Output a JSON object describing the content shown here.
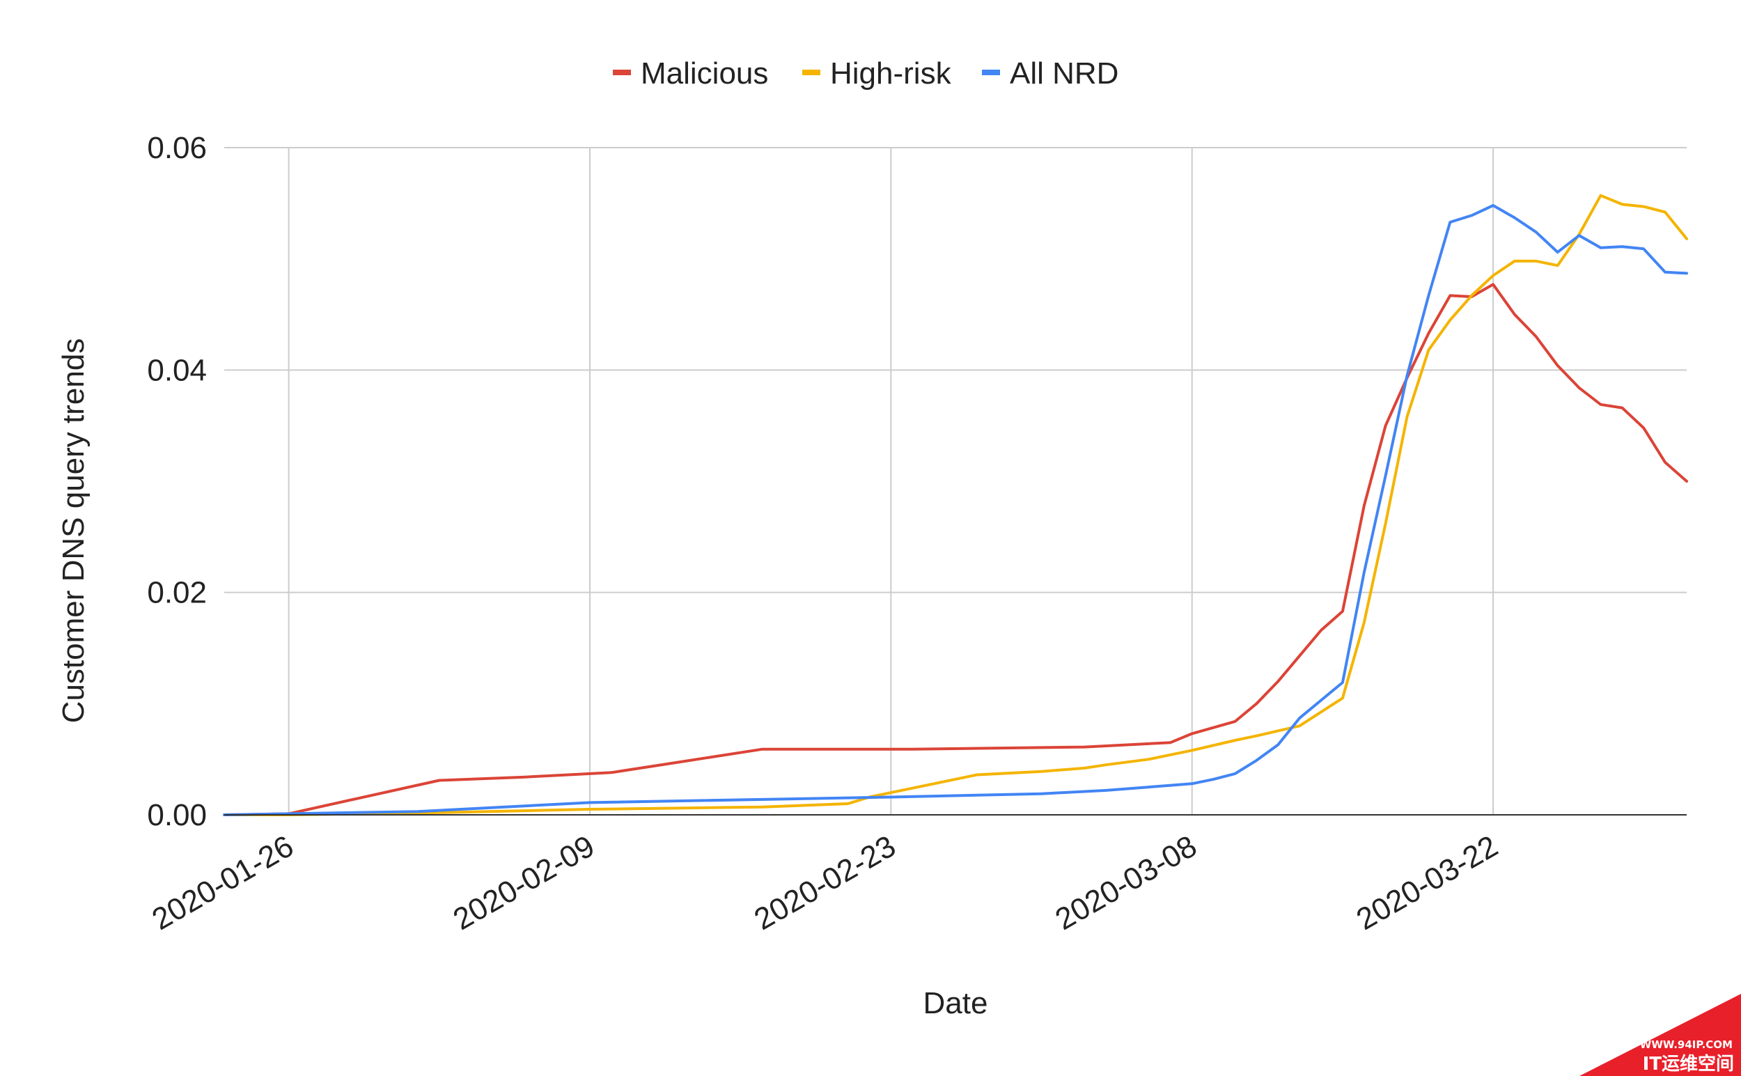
{
  "chart_data": {
    "type": "line",
    "title": "",
    "xlabel": "Date",
    "ylabel": "Customer DNS query trends",
    "ylim": [
      0,
      0.06
    ],
    "y_ticks": [
      "0.00",
      "0.02",
      "0.04",
      "0.06"
    ],
    "x_ticks": [
      "2020-01-26",
      "2020-02-09",
      "2020-02-23",
      "2020-03-08",
      "2020-03-22"
    ],
    "x_range": [
      "2020-01-23",
      "2020-03-31"
    ],
    "grid": true,
    "legend_position": "top-center",
    "series": [
      {
        "name": "Malicious",
        "color": "#db4437",
        "points": [
          [
            "2020-01-23",
            0.0
          ],
          [
            "2020-01-26",
            0.0001
          ],
          [
            "2020-02-02",
            0.0031
          ],
          [
            "2020-02-06",
            0.0034
          ],
          [
            "2020-02-08",
            0.0036
          ],
          [
            "2020-02-10",
            0.0038
          ],
          [
            "2020-02-13",
            0.0047
          ],
          [
            "2020-02-17",
            0.0059
          ],
          [
            "2020-02-24",
            0.0059
          ],
          [
            "2020-03-03",
            0.0061
          ],
          [
            "2020-03-07",
            0.0065
          ],
          [
            "2020-03-08",
            0.0073
          ],
          [
            "2020-03-10",
            0.0084
          ],
          [
            "2020-03-11",
            0.01
          ],
          [
            "2020-03-12",
            0.012
          ],
          [
            "2020-03-13",
            0.0143
          ],
          [
            "2020-03-14",
            0.0166
          ],
          [
            "2020-03-15",
            0.0183
          ],
          [
            "2020-03-16",
            0.0278
          ],
          [
            "2020-03-17",
            0.035
          ],
          [
            "2020-03-18",
            0.0393
          ],
          [
            "2020-03-19",
            0.0433
          ],
          [
            "2020-03-20",
            0.0467
          ],
          [
            "2020-03-21",
            0.0466
          ],
          [
            "2020-03-22",
            0.0477
          ],
          [
            "2020-03-23",
            0.045
          ],
          [
            "2020-03-24",
            0.043
          ],
          [
            "2020-03-25",
            0.0404
          ],
          [
            "2020-03-26",
            0.0384
          ],
          [
            "2020-03-27",
            0.0369
          ],
          [
            "2020-03-28",
            0.0366
          ],
          [
            "2020-03-29",
            0.0348
          ],
          [
            "2020-03-30",
            0.0317
          ],
          [
            "2020-03-31",
            0.03
          ]
        ]
      },
      {
        "name": "High-risk",
        "color": "#f4b400",
        "points": [
          [
            "2020-01-23",
            0.0
          ],
          [
            "2020-01-26",
            0.0
          ],
          [
            "2020-02-02",
            0.0002
          ],
          [
            "2020-02-09",
            0.0005
          ],
          [
            "2020-02-17",
            0.0007
          ],
          [
            "2020-02-21",
            0.001
          ],
          [
            "2020-02-22",
            0.0016
          ],
          [
            "2020-02-23",
            0.002
          ],
          [
            "2020-02-25",
            0.0028
          ],
          [
            "2020-02-27",
            0.0036
          ],
          [
            "2020-03-01",
            0.0039
          ],
          [
            "2020-03-03",
            0.0042
          ],
          [
            "2020-03-04",
            0.0045
          ],
          [
            "2020-03-06",
            0.005
          ],
          [
            "2020-03-08",
            0.0058
          ],
          [
            "2020-03-10",
            0.0067
          ],
          [
            "2020-03-11",
            0.0071
          ],
          [
            "2020-03-13",
            0.008
          ],
          [
            "2020-03-15",
            0.0105
          ],
          [
            "2020-03-16",
            0.0173
          ],
          [
            "2020-03-17",
            0.0262
          ],
          [
            "2020-03-18",
            0.0358
          ],
          [
            "2020-03-19",
            0.0418
          ],
          [
            "2020-03-20",
            0.0445
          ],
          [
            "2020-03-21",
            0.0467
          ],
          [
            "2020-03-22",
            0.0485
          ],
          [
            "2020-03-23",
            0.0498
          ],
          [
            "2020-03-24",
            0.0498
          ],
          [
            "2020-03-25",
            0.0494
          ],
          [
            "2020-03-26",
            0.0522
          ],
          [
            "2020-03-27",
            0.0557
          ],
          [
            "2020-03-28",
            0.0549
          ],
          [
            "2020-03-29",
            0.0547
          ],
          [
            "2020-03-30",
            0.0542
          ],
          [
            "2020-03-31",
            0.0518
          ]
        ]
      },
      {
        "name": "All NRD",
        "color": "#4285f4",
        "points": [
          [
            "2020-01-23",
            0.0
          ],
          [
            "2020-01-26",
            0.0001
          ],
          [
            "2020-02-01",
            0.0003
          ],
          [
            "2020-02-02",
            0.0004
          ],
          [
            "2020-02-09",
            0.0011
          ],
          [
            "2020-02-23",
            0.0016
          ],
          [
            "2020-03-01",
            0.0019
          ],
          [
            "2020-03-04",
            0.0022
          ],
          [
            "2020-03-06",
            0.0025
          ],
          [
            "2020-03-08",
            0.0028
          ],
          [
            "2020-03-09",
            0.0032
          ],
          [
            "2020-03-10",
            0.0037
          ],
          [
            "2020-03-11",
            0.0049
          ],
          [
            "2020-03-12",
            0.0063
          ],
          [
            "2020-03-13",
            0.0087
          ],
          [
            "2020-03-14",
            0.0103
          ],
          [
            "2020-03-15",
            0.0119
          ],
          [
            "2020-03-16",
            0.0218
          ],
          [
            "2020-03-17",
            0.0305
          ],
          [
            "2020-03-18",
            0.0395
          ],
          [
            "2020-03-19",
            0.0467
          ],
          [
            "2020-03-20",
            0.0533
          ],
          [
            "2020-03-21",
            0.0539
          ],
          [
            "2020-03-22",
            0.0548
          ],
          [
            "2020-03-23",
            0.0537
          ],
          [
            "2020-03-24",
            0.0524
          ],
          [
            "2020-03-25",
            0.0506
          ],
          [
            "2020-03-26",
            0.0521
          ],
          [
            "2020-03-27",
            0.051
          ],
          [
            "2020-03-28",
            0.0511
          ],
          [
            "2020-03-29",
            0.0509
          ],
          [
            "2020-03-30",
            0.0488
          ],
          [
            "2020-03-31",
            0.0487
          ]
        ]
      }
    ]
  },
  "watermark": {
    "url_text": "WWW.94IP.COM",
    "brand_text": "IT运维空间",
    "color": "#e8202a"
  }
}
